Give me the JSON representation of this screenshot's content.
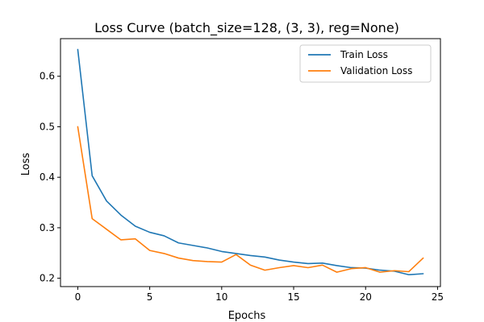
{
  "chart_data": {
    "type": "line",
    "title": "Loss Curve (batch_size=128, (3, 3), reg=None)",
    "xlabel": "Epochs",
    "ylabel": "Loss",
    "xlim": [
      -1.2,
      25.2
    ],
    "ylim": [
      0.1835,
      0.6745
    ],
    "xticks": [
      0,
      5,
      10,
      15,
      20,
      25
    ],
    "yticks": [
      0.2,
      0.3,
      0.4,
      0.5,
      0.6
    ],
    "grid": false,
    "legend_position": "top-right",
    "x": [
      0,
      1,
      2,
      3,
      4,
      5,
      6,
      7,
      8,
      9,
      10,
      11,
      12,
      13,
      14,
      15,
      16,
      17,
      18,
      19,
      20,
      21,
      22,
      23,
      24
    ],
    "series": [
      {
        "name": "Train Loss",
        "color": "#1f77b4",
        "values": [
          0.653,
          0.403,
          0.353,
          0.325,
          0.303,
          0.291,
          0.284,
          0.27,
          0.265,
          0.26,
          0.253,
          0.249,
          0.245,
          0.242,
          0.236,
          0.232,
          0.229,
          0.23,
          0.225,
          0.221,
          0.22,
          0.216,
          0.214,
          0.207,
          0.209
        ]
      },
      {
        "name": "Validation Loss",
        "color": "#ff7f0e",
        "values": [
          0.5,
          0.318,
          0.297,
          0.276,
          0.278,
          0.255,
          0.249,
          0.24,
          0.235,
          0.233,
          0.232,
          0.247,
          0.226,
          0.216,
          0.221,
          0.225,
          0.221,
          0.226,
          0.212,
          0.219,
          0.221,
          0.212,
          0.215,
          0.213,
          0.24
        ]
      }
    ]
  }
}
